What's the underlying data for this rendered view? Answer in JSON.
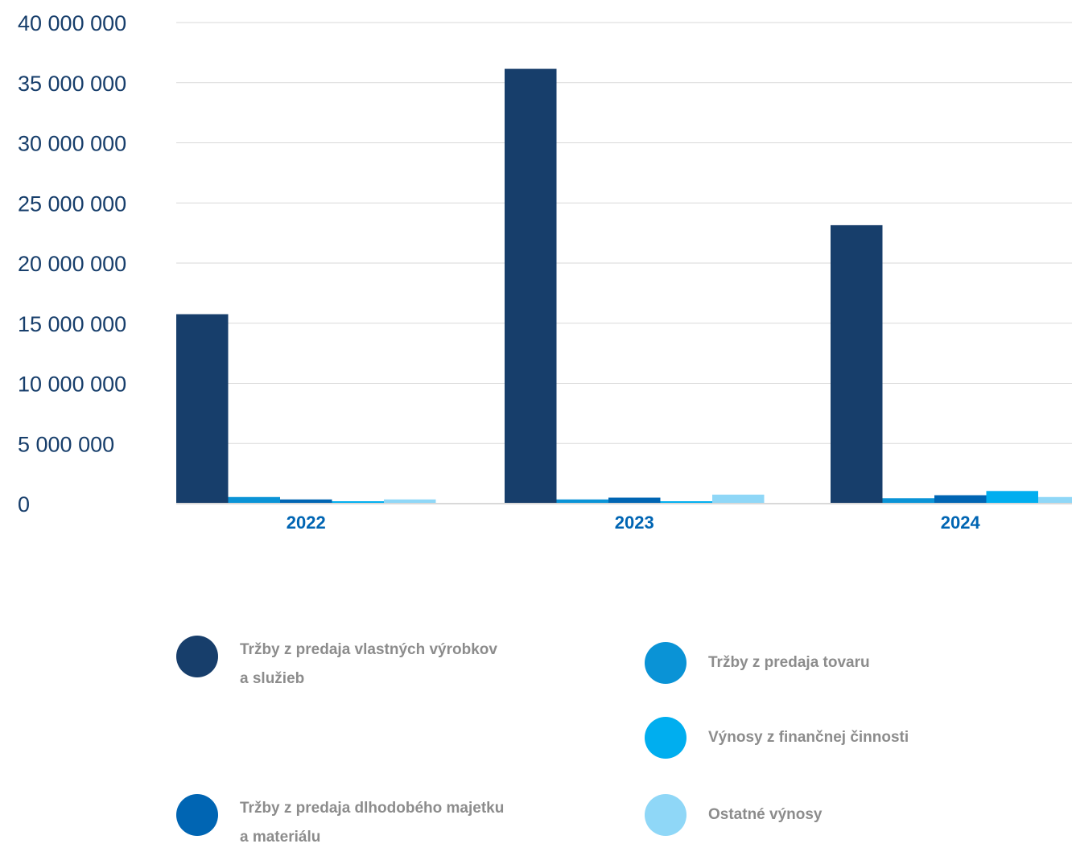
{
  "chart_data": {
    "type": "bar",
    "categories": [
      "2022",
      "2023",
      "2024"
    ],
    "series": [
      {
        "name": "Tržby z predaja vlastných výrobkov a služieb",
        "color": "#173e6b",
        "values": [
          15750000,
          36150000,
          23150000
        ]
      },
      {
        "name": "Tržby z predaja tovaru",
        "color": "#0a93d6",
        "values": [
          550000,
          350000,
          450000
        ]
      },
      {
        "name": "Tržby z predaja dlhodobého majetku a materiálu",
        "color": "#0065b3",
        "values": [
          350000,
          500000,
          700000
        ]
      },
      {
        "name": "Výnosy z finančnej činnosti",
        "color": "#00aeef",
        "values": [
          200000,
          200000,
          1050000
        ]
      },
      {
        "name": "Ostatné výnosy",
        "color": "#8fd7f7",
        "values": [
          350000,
          750000,
          550000
        ]
      }
    ],
    "yticks": [
      "0",
      "5 000 000",
      "10 000 000",
      "15 000 000",
      "20 000 000",
      "25 000 000",
      "30 000 000",
      "35 000 000",
      "40 000 000"
    ],
    "ylim": [
      0,
      40000000
    ],
    "grid": true,
    "legend_position": "bottom"
  },
  "legend": [
    {
      "label_line1": "Tržby z predaja vlastných výrobkov",
      "label_line2": "a služieb",
      "color": "#173e6b"
    },
    {
      "label_line1": "Tržby z predaja tovaru",
      "label_line2": "",
      "color": "#0a93d6"
    },
    {
      "label_line1": "Výnosy z finančnej činnosti",
      "label_line2": "",
      "color": "#00aeef"
    },
    {
      "label_line1": "Tržby z predaja dlhodobého majetku",
      "label_line2": "a materiálu",
      "color": "#0065b3"
    },
    {
      "label_line1": "Ostatné výnosy",
      "label_line2": "",
      "color": "#8fd7f7"
    }
  ]
}
